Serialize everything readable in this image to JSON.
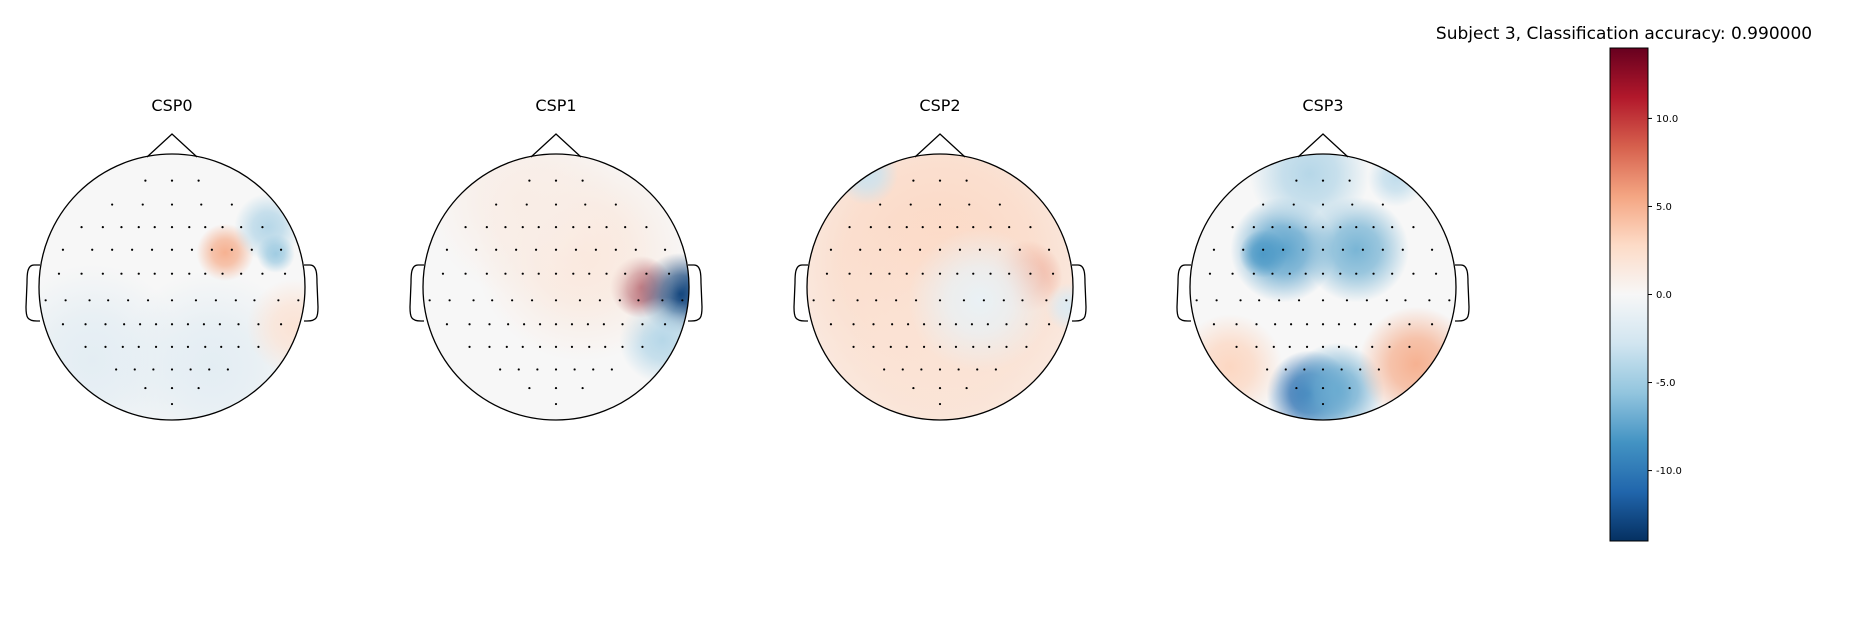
{
  "figure": {
    "suptitle": "Subject 3, Classification accuracy: 0.990000"
  },
  "chart_data": {
    "type": "heatmap",
    "title": "Subject 3, Classification accuracy: 0.990000",
    "topomaps": [
      {
        "name": "CSP0",
        "hotspots": [
          {
            "x": 0.4,
            "y": -0.26,
            "value": 5.0,
            "r": 0.12
          },
          {
            "x": 0.72,
            "y": -0.45,
            "value": -4.0,
            "r": 0.14
          },
          {
            "x": 0.78,
            "y": -0.25,
            "value": -5.0,
            "r": 0.08
          },
          {
            "x": -0.6,
            "y": 0.55,
            "value": -1.5,
            "r": 0.4
          },
          {
            "x": 0.3,
            "y": 0.6,
            "value": -1.5,
            "r": 0.4
          },
          {
            "x": 0.92,
            "y": 0.3,
            "value": 2.0,
            "r": 0.2
          }
        ]
      },
      {
        "name": "CSP1",
        "hotspots": [
          {
            "x": 0.64,
            "y": 0.0,
            "value": 13.0,
            "r": 0.13
          },
          {
            "x": 0.93,
            "y": 0.05,
            "value": -13.0,
            "r": 0.17
          },
          {
            "x": 0.8,
            "y": 0.4,
            "value": -4.0,
            "r": 0.18
          },
          {
            "x": 0.2,
            "y": -0.25,
            "value": 1.5,
            "r": 0.45
          },
          {
            "x": -0.25,
            "y": -0.65,
            "value": 1.0,
            "r": 0.4
          }
        ]
      },
      {
        "name": "CSP2",
        "hotspots": [
          {
            "x": 0.65,
            "y": -0.08,
            "value": 9.0,
            "r": 0.15
          },
          {
            "x": 0.0,
            "y": -0.2,
            "value": 3.0,
            "r": 0.9
          },
          {
            "x": 0.0,
            "y": 0.5,
            "value": 2.0,
            "r": 0.6
          },
          {
            "x": -0.55,
            "y": -0.85,
            "value": -3.0,
            "r": 0.13
          },
          {
            "x": 0.97,
            "y": 0.15,
            "value": -2.0,
            "r": 0.1
          },
          {
            "x": 0.3,
            "y": 0.1,
            "value": -1.0,
            "r": 0.3
          }
        ]
      },
      {
        "name": "CSP3",
        "hotspots": [
          {
            "x": -0.3,
            "y": -0.28,
            "value": -7.5,
            "r": 0.22
          },
          {
            "x": 0.25,
            "y": -0.28,
            "value": -6.5,
            "r": 0.22
          },
          {
            "x": -0.45,
            "y": -0.25,
            "value": -8.0,
            "r": 0.1
          },
          {
            "x": -0.1,
            "y": 0.8,
            "value": -11.0,
            "r": 0.18
          },
          {
            "x": 0.1,
            "y": 0.78,
            "value": -7.0,
            "r": 0.2
          },
          {
            "x": -0.1,
            "y": -0.85,
            "value": -4.0,
            "r": 0.25
          },
          {
            "x": 0.55,
            "y": -0.82,
            "value": -3.5,
            "r": 0.12
          },
          {
            "x": -0.7,
            "y": 0.6,
            "value": 3.0,
            "r": 0.22
          },
          {
            "x": 0.7,
            "y": 0.58,
            "value": 5.0,
            "r": 0.24
          }
        ]
      }
    ],
    "colorbar": {
      "colormap": "RdBu_r",
      "vmin": -14.0,
      "vmax": 14.0,
      "ticks": [
        10.0,
        5.0,
        0.0,
        -5.0,
        -10.0
      ],
      "tick_labels": [
        "10.0",
        "5.0",
        "0.0",
        "-5.0",
        "-10.0"
      ]
    }
  }
}
